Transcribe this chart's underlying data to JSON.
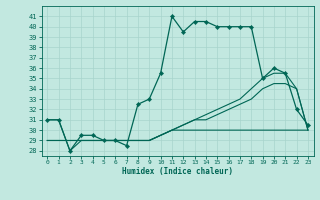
{
  "xlabel": "Humidex (Indice chaleur)",
  "x_ticks": [
    0,
    1,
    2,
    3,
    4,
    5,
    6,
    7,
    8,
    9,
    10,
    11,
    12,
    13,
    14,
    15,
    16,
    17,
    18,
    19,
    20,
    21,
    22,
    23
  ],
  "ylim": [
    27.5,
    42
  ],
  "xlim": [
    -0.5,
    23.5
  ],
  "yticks": [
    28,
    29,
    30,
    31,
    32,
    33,
    34,
    35,
    36,
    37,
    38,
    39,
    40,
    41
  ],
  "bg_color": "#c2e8e0",
  "grid_color": "#a8d4cc",
  "line_color": "#006655",
  "line1_x": [
    0,
    1,
    2,
    3,
    4,
    5,
    6,
    7,
    8,
    9,
    10,
    11,
    12,
    13,
    14,
    15,
    16,
    17,
    18,
    19,
    20,
    21,
    22,
    23
  ],
  "line1_y": [
    31,
    31,
    28,
    29.5,
    29.5,
    29,
    29,
    28.5,
    32.5,
    33,
    35.5,
    41,
    39.5,
    40.5,
    40.5,
    40,
    40,
    40,
    40,
    35,
    36,
    35.5,
    32,
    30.5
  ],
  "line2_x": [
    0,
    1,
    2,
    3,
    4,
    5,
    6,
    7,
    8,
    9,
    10,
    11,
    12,
    13,
    14,
    15,
    16,
    17,
    18,
    19,
    20,
    21,
    22,
    23
  ],
  "line2_y": [
    31,
    31,
    28,
    29,
    29,
    29,
    29,
    29,
    29,
    29,
    29.5,
    30,
    30,
    30,
    30,
    30,
    30,
    30,
    30,
    30,
    30,
    30,
    30,
    30
  ],
  "line3_x": [
    0,
    5,
    6,
    7,
    8,
    9,
    10,
    11,
    12,
    13,
    14,
    15,
    16,
    17,
    18,
    19,
    20,
    21,
    22,
    23
  ],
  "line3_y": [
    29,
    29,
    29,
    29,
    29,
    29,
    29.5,
    30,
    30.5,
    31,
    31,
    31.5,
    32,
    32.5,
    33,
    34,
    34.5,
    34.5,
    34,
    30
  ],
  "line4_x": [
    0,
    5,
    6,
    7,
    8,
    9,
    10,
    11,
    12,
    13,
    14,
    15,
    16,
    17,
    18,
    19,
    20,
    21,
    22,
    23
  ],
  "line4_y": [
    29,
    29,
    29,
    29,
    29,
    29,
    29.5,
    30,
    30.5,
    31,
    31.5,
    32,
    32.5,
    33,
    34,
    35,
    35.5,
    35.5,
    34,
    30
  ]
}
